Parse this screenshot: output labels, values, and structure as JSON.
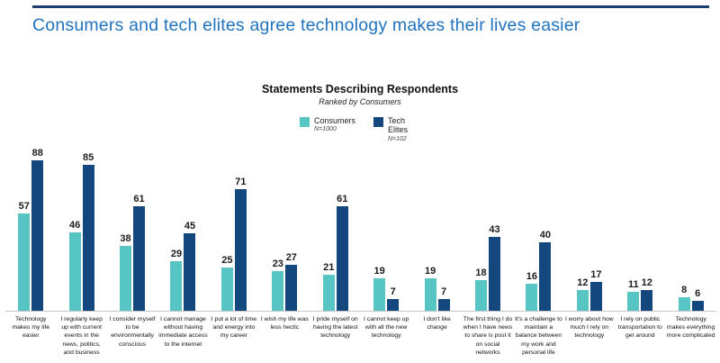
{
  "page": {
    "title": "Consumers and tech elites agree technology makes their lives easier"
  },
  "chart_data": {
    "type": "bar",
    "title": "Statements Describing Respondents",
    "subtitle": "Ranked by Consumers",
    "categories": [
      "Technology makes my life easier",
      "I regularly keep up with current events in the news, politics, and business",
      "I consider myself to be environmentally conscious",
      "I cannot manage without having immediate access to the internet",
      "I put a lot of time and energy into my career",
      "I wish my life was less hectic",
      "I pride myself on having the latest technology",
      "I cannot keep up with all the new technology",
      "I don't like change",
      "The first thing I do when I have news to share is post it on social networks",
      "It's a challenge to maintain a balance between my work and personal life",
      "I worry about how much I rely on technology",
      "I rely on public transportation to get around",
      "Technology makes everything more complicated"
    ],
    "series": [
      {
        "name": "Consumers",
        "sublabel": "N=1000",
        "color": "#56c5c4",
        "values": [
          57,
          46,
          38,
          29,
          25,
          23,
          21,
          19,
          19,
          18,
          16,
          12,
          11,
          8
        ]
      },
      {
        "name": "Tech Elites",
        "sublabel": "N=102",
        "color": "#14477d",
        "values": [
          88,
          85,
          61,
          45,
          71,
          27,
          61,
          7,
          7,
          43,
          40,
          17,
          12,
          6
        ]
      }
    ],
    "ylim": [
      0,
      95
    ],
    "grid": false,
    "legend_position": "top",
    "accent_colors": {
      "title_blue": "#1f72be",
      "rule_navy": "#1b3f70",
      "baseline_gray": "#c9c9c9"
    }
  }
}
